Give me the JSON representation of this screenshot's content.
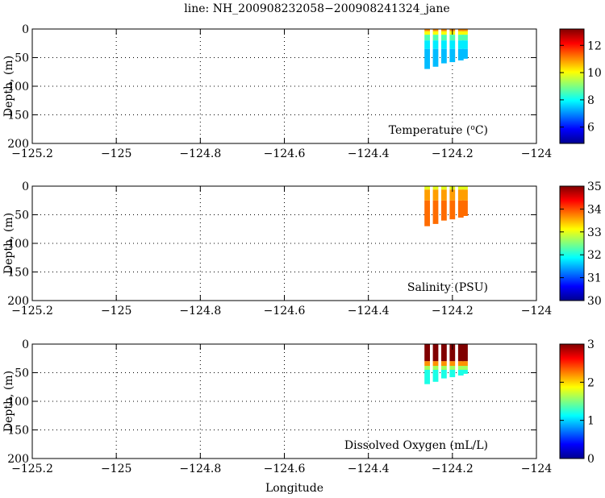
{
  "title": "line: NH_200908232058−200908241324_jane",
  "xlabel": "Longitude",
  "ylabel": "Depth, (m)",
  "colorscale": [
    "#00008f",
    "#0000ff",
    "#0080ff",
    "#00ffff",
    "#80ff80",
    "#ffff00",
    "#ff8000",
    "#ff0000",
    "#800000"
  ],
  "chart_data": [
    {
      "type": "heatmap",
      "name": "temperature",
      "label_html": "Temperature (<tspan baseline-shift=\"super\" font-size=\"9\">o</tspan>C)",
      "label": "Temperature (oC)",
      "xlim": [
        -125.2,
        -124.0
      ],
      "ylim": [
        0,
        200
      ],
      "y_inverted": true,
      "xticks": [
        -125.2,
        -125,
        -124.8,
        -124.6,
        -124.4,
        -124.2,
        -124
      ],
      "xtick_labels": [
        "−125.2",
        "−125",
        "−124.8",
        "−124.6",
        "−124.4",
        "−124.2",
        "−124"
      ],
      "yticks": [
        0,
        50,
        100,
        150,
        200
      ],
      "ytick_labels": [
        "0",
        "50",
        "100",
        "150",
        "200"
      ],
      "grid": true,
      "colorbar": {
        "min": 4.8,
        "max": 13.2,
        "ticks": [
          6,
          8,
          10,
          12
        ],
        "tick_labels": [
          "6",
          "8",
          "10",
          "12"
        ]
      },
      "profiles": [
        {
          "lon": -124.26,
          "max_depth": 70
        },
        {
          "lon": -124.24,
          "max_depth": 66
        },
        {
          "lon": -124.22,
          "max_depth": 60
        },
        {
          "lon": -124.2,
          "max_depth": 58
        },
        {
          "lon": -124.18,
          "max_depth": 55
        },
        {
          "lon": -124.17,
          "max_depth": 52
        }
      ],
      "layers": [
        {
          "from": 0,
          "to": 4,
          "value": 11.0
        },
        {
          "from": 4,
          "to": 10,
          "value": 10.0
        },
        {
          "from": 10,
          "to": 20,
          "value": 8.6
        },
        {
          "from": 20,
          "to": 35,
          "value": 7.8
        },
        {
          "from": 35,
          "to": 80,
          "value": 7.4
        }
      ]
    },
    {
      "type": "heatmap",
      "name": "salinity",
      "label": "Salinity (PSU)",
      "xlim": [
        -125.2,
        -124.0
      ],
      "ylim": [
        0,
        200
      ],
      "y_inverted": true,
      "xticks": [
        -125.2,
        -125,
        -124.8,
        -124.6,
        -124.4,
        -124.2,
        -124
      ],
      "xtick_labels": [
        "−125.2",
        "−125",
        "−124.8",
        "−124.6",
        "−124.4",
        "−124.2",
        "−124"
      ],
      "yticks": [
        0,
        50,
        100,
        150,
        200
      ],
      "ytick_labels": [
        "0",
        "50",
        "100",
        "150",
        "200"
      ],
      "grid": true,
      "colorbar": {
        "min": 30,
        "max": 35,
        "ticks": [
          30,
          31,
          32,
          33,
          34,
          35
        ],
        "tick_labels": [
          "30",
          "31",
          "32",
          "33",
          "34",
          "35"
        ]
      },
      "profiles": [
        {
          "lon": -124.26,
          "max_depth": 70
        },
        {
          "lon": -124.24,
          "max_depth": 66
        },
        {
          "lon": -124.22,
          "max_depth": 60
        },
        {
          "lon": -124.2,
          "max_depth": 58
        },
        {
          "lon": -124.18,
          "max_depth": 55
        },
        {
          "lon": -124.17,
          "max_depth": 52
        }
      ],
      "layers": [
        {
          "from": 0,
          "to": 6,
          "value": 33.0
        },
        {
          "from": 6,
          "to": 25,
          "value": 33.6
        },
        {
          "from": 25,
          "to": 80,
          "value": 33.85
        }
      ]
    },
    {
      "type": "heatmap",
      "name": "oxygen",
      "label": "Dissolved Oxygen (mL/L)",
      "xlim": [
        -125.2,
        -124.0
      ],
      "ylim": [
        0,
        200
      ],
      "y_inverted": true,
      "xticks": [
        -125.2,
        -125,
        -124.8,
        -124.6,
        -124.4,
        -124.2,
        -124
      ],
      "xtick_labels": [
        "−125.2",
        "−125",
        "−124.8",
        "−124.6",
        "−124.4",
        "−124.2",
        "−124"
      ],
      "yticks": [
        0,
        50,
        100,
        150,
        200
      ],
      "ytick_labels": [
        "0",
        "50",
        "100",
        "150",
        "200"
      ],
      "grid": true,
      "colorbar": {
        "min": 0,
        "max": 3,
        "ticks": [
          0,
          1,
          2,
          3
        ],
        "tick_labels": [
          "0",
          "1",
          "2",
          "3"
        ]
      },
      "profiles": [
        {
          "lon": -124.26,
          "max_depth": 70
        },
        {
          "lon": -124.24,
          "max_depth": 66
        },
        {
          "lon": -124.22,
          "max_depth": 60
        },
        {
          "lon": -124.2,
          "max_depth": 58
        },
        {
          "lon": -124.18,
          "max_depth": 55
        },
        {
          "lon": -124.17,
          "max_depth": 52
        }
      ],
      "layers": [
        {
          "from": 0,
          "to": 30,
          "value": 3.0
        },
        {
          "from": 30,
          "to": 38,
          "value": 2.2
        },
        {
          "from": 38,
          "to": 45,
          "value": 1.6
        },
        {
          "from": 45,
          "to": 80,
          "value": 1.2
        }
      ]
    }
  ]
}
